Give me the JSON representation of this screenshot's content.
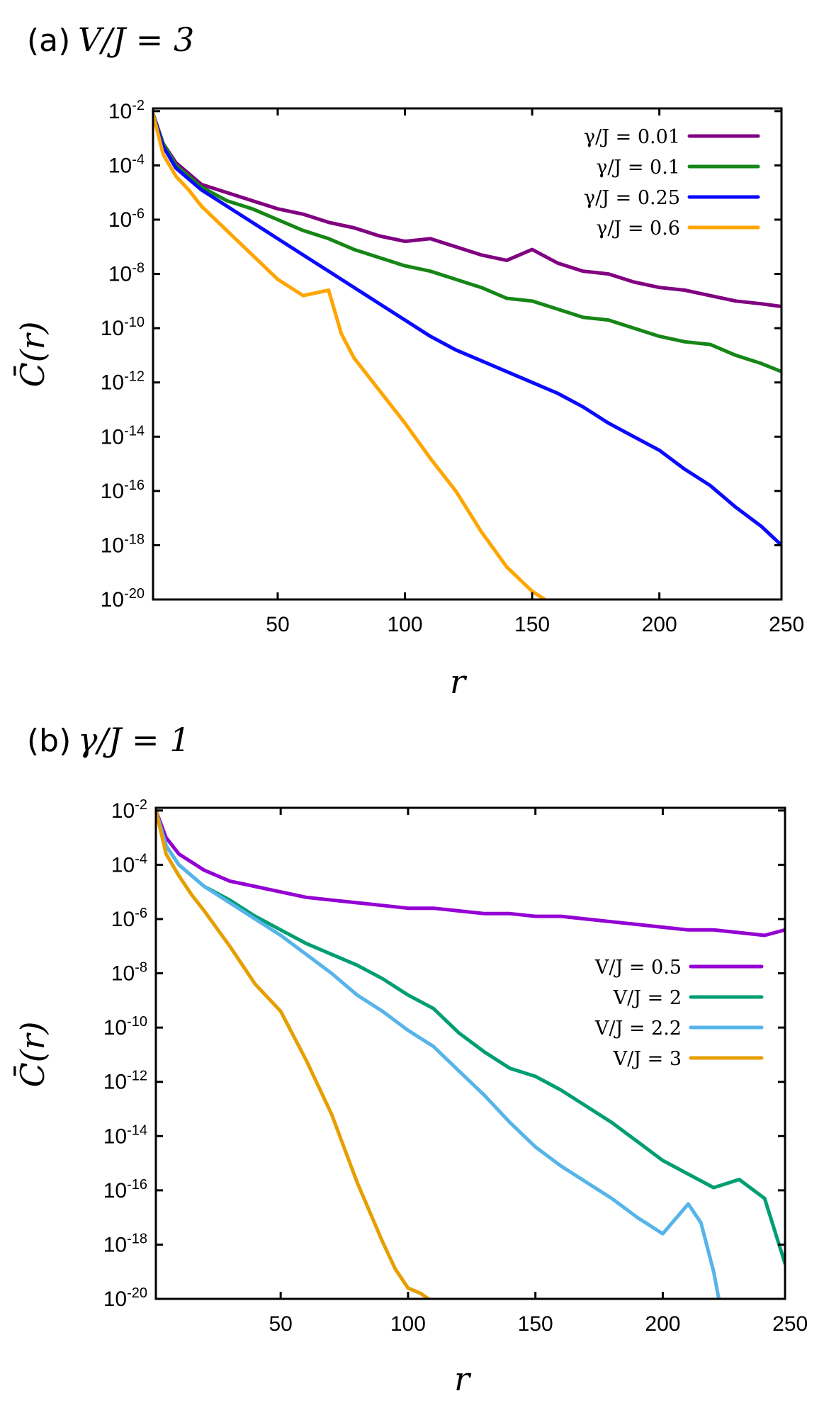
{
  "chart_data": [
    {
      "type": "line",
      "panel_label": "(a)",
      "title": "V/J = 3",
      "xlabel": "r",
      "ylabel": "C̄(r)",
      "xlim": [
        1,
        248
      ],
      "ylim_log10": [
        -20,
        -1.9
      ],
      "y_scale": "log",
      "xticks": [
        50,
        100,
        150,
        200,
        250
      ],
      "yticks": [
        {
          "base": "10",
          "exp": "-2",
          "log": -2
        },
        {
          "base": "10",
          "exp": "-4",
          "log": -4
        },
        {
          "base": "10",
          "exp": "-6",
          "log": -6
        },
        {
          "base": "10",
          "exp": "-8",
          "log": -8
        },
        {
          "base": "10",
          "exp": "-10",
          "log": -10
        },
        {
          "base": "10",
          "exp": "-12",
          "log": -12
        },
        {
          "base": "10",
          "exp": "-14",
          "log": -14
        },
        {
          "base": "10",
          "exp": "-16",
          "log": -16
        },
        {
          "base": "10",
          "exp": "-18",
          "log": -18
        },
        {
          "base": "10",
          "exp": "-20",
          "log": -20
        }
      ],
      "legend_position": "top-right",
      "series": [
        {
          "name": "γ/J = 0.01",
          "color": "#800080",
          "x": [
            1,
            5,
            10,
            20,
            30,
            40,
            50,
            60,
            70,
            80,
            90,
            100,
            110,
            120,
            130,
            140,
            150,
            160,
            170,
            180,
            190,
            200,
            210,
            220,
            230,
            240,
            248
          ],
          "y_log10": [
            -2.1,
            -3.2,
            -3.9,
            -4.7,
            -5.0,
            -5.3,
            -5.6,
            -5.8,
            -6.1,
            -6.3,
            -6.6,
            -6.8,
            -6.7,
            -7.0,
            -7.3,
            -7.5,
            -7.1,
            -7.6,
            -7.9,
            -8.0,
            -8.3,
            -8.5,
            -8.6,
            -8.8,
            -9.0,
            -9.1,
            -9.2
          ]
        },
        {
          "name": "γ/J = 0.1",
          "color": "#168616",
          "x": [
            1,
            5,
            10,
            20,
            30,
            40,
            50,
            60,
            70,
            80,
            90,
            100,
            110,
            120,
            130,
            140,
            150,
            160,
            170,
            180,
            190,
            200,
            210,
            220,
            230,
            240,
            248
          ],
          "y_log10": [
            -2.1,
            -3.2,
            -4.0,
            -4.8,
            -5.3,
            -5.6,
            -6.0,
            -6.4,
            -6.7,
            -7.1,
            -7.4,
            -7.7,
            -7.9,
            -8.2,
            -8.5,
            -8.9,
            -9.0,
            -9.3,
            -9.6,
            -9.7,
            -10.0,
            -10.3,
            -10.5,
            -10.6,
            -11.0,
            -11.3,
            -11.6
          ]
        },
        {
          "name": "γ/J = 0.25",
          "color": "#0a0aff",
          "x": [
            1,
            5,
            10,
            20,
            30,
            40,
            50,
            60,
            70,
            80,
            90,
            100,
            110,
            120,
            130,
            140,
            150,
            160,
            170,
            180,
            190,
            200,
            210,
            220,
            230,
            240,
            248
          ],
          "y_log10": [
            -2.1,
            -3.3,
            -4.1,
            -4.9,
            -5.5,
            -6.1,
            -6.7,
            -7.3,
            -7.9,
            -8.5,
            -9.1,
            -9.7,
            -10.3,
            -10.8,
            -11.2,
            -11.6,
            -12.0,
            -12.4,
            -12.9,
            -13.5,
            -14.0,
            -14.5,
            -15.2,
            -15.8,
            -16.6,
            -17.3,
            -18.0
          ]
        },
        {
          "name": "γ/J = 0.6",
          "color": "#ffa500",
          "x": [
            1,
            5,
            10,
            15,
            20,
            30,
            40,
            50,
            60,
            70,
            75,
            80,
            90,
            100,
            110,
            120,
            130,
            140,
            150,
            155
          ],
          "y_log10": [
            -2.1,
            -3.6,
            -4.4,
            -4.9,
            -5.5,
            -6.4,
            -7.3,
            -8.2,
            -8.8,
            -8.6,
            -10.2,
            -11.1,
            -12.3,
            -13.5,
            -14.8,
            -16.0,
            -17.5,
            -18.8,
            -19.7,
            -20.0
          ]
        }
      ]
    },
    {
      "type": "line",
      "panel_label": "(b)",
      "title": "γ/J = 1",
      "xlabel": "r",
      "ylabel": "C̄(r)",
      "xlim": [
        1,
        248
      ],
      "ylim_log10": [
        -20,
        -1.9
      ],
      "y_scale": "log",
      "xticks": [
        50,
        100,
        150,
        200,
        250
      ],
      "yticks": [
        {
          "base": "10",
          "exp": "-2",
          "log": -2
        },
        {
          "base": "10",
          "exp": "-4",
          "log": -4
        },
        {
          "base": "10",
          "exp": "-6",
          "log": -6
        },
        {
          "base": "10",
          "exp": "-8",
          "log": -8
        },
        {
          "base": "10",
          "exp": "-10",
          "log": -10
        },
        {
          "base": "10",
          "exp": "-12",
          "log": -12
        },
        {
          "base": "10",
          "exp": "-14",
          "log": -14
        },
        {
          "base": "10",
          "exp": "-16",
          "log": -16
        },
        {
          "base": "10",
          "exp": "-18",
          "log": -18
        },
        {
          "base": "10",
          "exp": "-20",
          "log": -20
        }
      ],
      "legend_position": "center-right",
      "series": [
        {
          "name": "V/J = 0.5",
          "color": "#9400d3",
          "x": [
            1,
            5,
            10,
            20,
            30,
            40,
            50,
            60,
            70,
            80,
            90,
            100,
            110,
            120,
            130,
            140,
            150,
            160,
            170,
            180,
            190,
            200,
            210,
            220,
            230,
            240,
            248
          ],
          "y_log10": [
            -2.0,
            -3.0,
            -3.6,
            -4.2,
            -4.6,
            -4.8,
            -5.0,
            -5.2,
            -5.3,
            -5.4,
            -5.5,
            -5.6,
            -5.6,
            -5.7,
            -5.8,
            -5.8,
            -5.9,
            -5.9,
            -6.0,
            -6.1,
            -6.2,
            -6.3,
            -6.4,
            -6.4,
            -6.5,
            -6.6,
            -6.4
          ]
        },
        {
          "name": "V/J = 2",
          "color": "#009e73",
          "x": [
            1,
            5,
            10,
            20,
            30,
            40,
            50,
            60,
            70,
            80,
            90,
            100,
            110,
            120,
            130,
            140,
            150,
            160,
            170,
            180,
            190,
            200,
            210,
            220,
            230,
            240,
            248
          ],
          "y_log10": [
            -2.0,
            -3.3,
            -4.0,
            -4.8,
            -5.3,
            -5.9,
            -6.4,
            -6.9,
            -7.3,
            -7.7,
            -8.2,
            -8.8,
            -9.3,
            -10.2,
            -10.9,
            -11.5,
            -11.8,
            -12.3,
            -12.9,
            -13.5,
            -14.2,
            -14.9,
            -15.4,
            -15.9,
            -15.6,
            -16.3,
            -18.7
          ]
        },
        {
          "name": "V/J = 2.2",
          "color": "#56b4e9",
          "x": [
            1,
            5,
            10,
            20,
            30,
            40,
            50,
            60,
            70,
            80,
            90,
            100,
            110,
            120,
            130,
            140,
            150,
            160,
            170,
            180,
            190,
            200,
            210,
            215,
            220,
            222
          ],
          "y_log10": [
            -2.0,
            -3.3,
            -4.0,
            -4.8,
            -5.4,
            -6.0,
            -6.6,
            -7.3,
            -8.0,
            -8.8,
            -9.4,
            -10.1,
            -10.7,
            -11.6,
            -12.5,
            -13.5,
            -14.4,
            -15.1,
            -15.7,
            -16.3,
            -17.0,
            -17.6,
            -16.5,
            -17.2,
            -19.0,
            -20.0
          ]
        },
        {
          "name": "V/J = 3",
          "color": "#e69f00",
          "x": [
            1,
            5,
            10,
            15,
            20,
            30,
            40,
            50,
            60,
            70,
            80,
            90,
            95,
            100,
            105,
            108
          ],
          "y_log10": [
            -2.0,
            -3.6,
            -4.4,
            -5.1,
            -5.7,
            -7.0,
            -8.4,
            -9.4,
            -11.2,
            -13.2,
            -15.7,
            -17.9,
            -18.9,
            -19.6,
            -19.8,
            -20.0
          ]
        }
      ]
    }
  ]
}
